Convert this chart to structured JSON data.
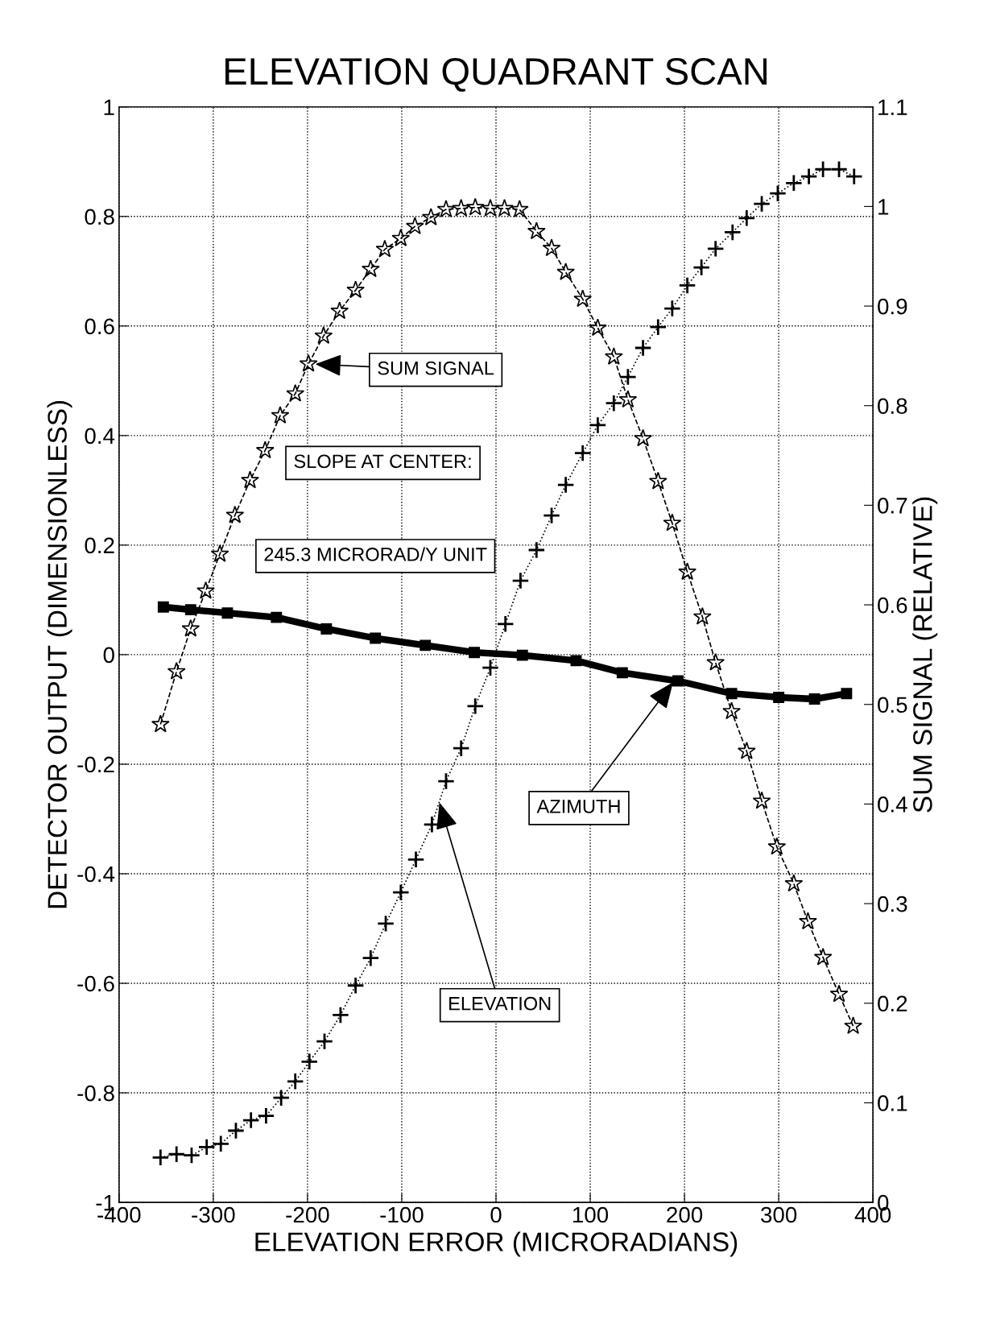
{
  "chart_data": {
    "type": "line",
    "title": "ELEVATION QUADRANT SCAN",
    "xlabel": "ELEVATION ERROR (MICRORADIANS)",
    "ylabel": "DETECTOR OUTPUT (DIMENSIONLESS)",
    "y2label": "SUM SIGNAL (RELATIVE)",
    "xlim": [
      -400,
      400
    ],
    "xticks": [
      -400,
      -300,
      -200,
      -100,
      0,
      100,
      200,
      300,
      400
    ],
    "ylim": [
      -1,
      1
    ],
    "yticks": [
      -1,
      -0.8,
      -0.6,
      -0.4,
      -0.2,
      0,
      0.2,
      0.4,
      0.6,
      0.8,
      1
    ],
    "y2lim": [
      0,
      1.1
    ],
    "y2ticks": [
      0,
      0.1,
      0.2,
      0.3,
      0.4,
      0.5,
      0.6,
      0.7,
      0.8,
      0.9,
      1,
      1.1
    ],
    "grid": true,
    "series": [
      {
        "color": "#000000",
        "marker": "cross",
        "line_style": "dotted",
        "x": [
          -356,
          -339,
          -323,
          -307,
          -292,
          -276,
          -260,
          -244,
          -228,
          -213,
          -198,
          -182,
          -165,
          -149,
          -133,
          -117,
          -101,
          -85,
          -68,
          -53,
          -37,
          -22,
          -6,
          10,
          26,
          43,
          59,
          74,
          92,
          108,
          125,
          140,
          156,
          172,
          187,
          203,
          218,
          233,
          251,
          266,
          282,
          299,
          316,
          332,
          347,
          364,
          380
        ],
        "values": [
          -0.918,
          -0.912,
          -0.914,
          -0.899,
          -0.893,
          -0.869,
          -0.85,
          -0.842,
          -0.809,
          -0.779,
          -0.743,
          -0.706,
          -0.658,
          -0.604,
          -0.554,
          -0.491,
          -0.434,
          -0.374,
          -0.31,
          -0.231,
          -0.171,
          -0.094,
          -0.024,
          0.056,
          0.135,
          0.191,
          0.254,
          0.31,
          0.368,
          0.419,
          0.459,
          0.507,
          0.56,
          0.598,
          0.632,
          0.674,
          0.707,
          0.741,
          0.771,
          0.797,
          0.823,
          0.842,
          0.861,
          0.873,
          0.886,
          0.886,
          0.873
        ]
      },
      {
        "color": "#000000",
        "marker": "star",
        "line_style": "dashed",
        "axis": "y2",
        "x": [
          -356,
          -339,
          -324,
          -308,
          -293,
          -277,
          -261,
          -245,
          -229,
          -213,
          -199,
          -183,
          -166,
          -149,
          -133,
          -118,
          -101,
          -86,
          -69,
          -53,
          -37,
          -22,
          -6,
          9,
          25,
          43,
          59,
          74,
          92,
          108,
          125,
          140,
          156,
          172,
          187,
          203,
          219,
          233,
          250,
          266,
          282,
          298,
          316,
          331,
          347,
          364,
          379
        ],
        "values": [
          0.48,
          0.533,
          0.576,
          0.614,
          0.651,
          0.69,
          0.725,
          0.755,
          0.79,
          0.812,
          0.842,
          0.87,
          0.895,
          0.916,
          0.937,
          0.957,
          0.968,
          0.98,
          0.989,
          0.997,
          0.998,
          0.999,
          0.998,
          0.998,
          0.997,
          0.975,
          0.958,
          0.934,
          0.907,
          0.878,
          0.849,
          0.806,
          0.767,
          0.724,
          0.682,
          0.633,
          0.588,
          0.542,
          0.493,
          0.453,
          0.403,
          0.357,
          0.32,
          0.282,
          0.246,
          0.209,
          0.177
        ]
      },
      {
        "color": "#000000",
        "marker": "square",
        "line_style": "solid",
        "x": [
          -353,
          -324,
          -285,
          -233,
          -180,
          -128,
          -75,
          -23,
          28,
          85,
          134,
          193,
          250,
          300,
          338,
          372
        ],
        "values": [
          0.087,
          0.082,
          0.076,
          0.068,
          0.047,
          0.03,
          0.017,
          0.004,
          -0.001,
          -0.011,
          -0.033,
          -0.048,
          -0.071,
          -0.078,
          -0.081,
          -0.071
        ]
      }
    ],
    "annotations": [
      "SUM SIGNAL",
      "SLOPE AT CENTER:",
      "245.3 MICRORAD/Y UNIT",
      {
        "text": "AZIMUTH",
        "x": 188,
        "y": -0.05
      },
      {
        "text": "ELEVATION",
        "x": -60,
        "y": -0.27
      }
    ]
  }
}
